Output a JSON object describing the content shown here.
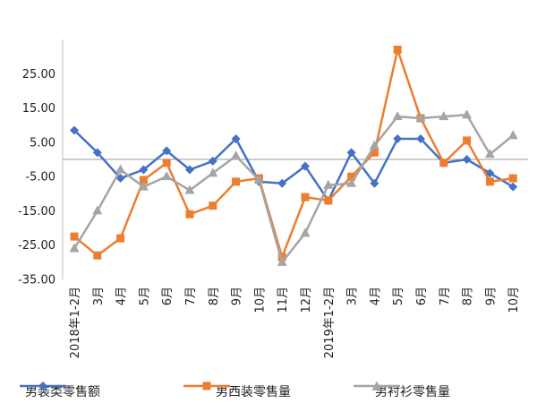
{
  "chart_data": {
    "type": "line",
    "categories": [
      "2018年1-2月",
      "3月",
      "4月",
      "5月",
      "6月",
      "7月",
      "8月",
      "9月",
      "10月",
      "11月",
      "12月",
      "2019年1-2月",
      "3月",
      "4月",
      "5月",
      "6月",
      "7月",
      "8月",
      "9月",
      "10月"
    ],
    "ylim": [
      -35,
      35
    ],
    "yticks": [
      "-35.00",
      "-25.00",
      "-15.00",
      "-5.00",
      "5.00",
      "15.00",
      "25.00"
    ],
    "yticks_values": [
      -35,
      -25,
      -15,
      -5,
      5,
      15,
      25
    ],
    "baseline": 0,
    "legend_position": "bottom",
    "series": [
      {
        "name": "男装类零售额",
        "color": "#4472C4",
        "marker": "diamond",
        "values": [
          8.5,
          2.0,
          -5.5,
          -3.0,
          2.5,
          -3.0,
          -0.5,
          6.0,
          -6.5,
          -7.0,
          -2.0,
          -12.0,
          2.0,
          -7.0,
          6.0,
          6.0,
          -1.0,
          0.0,
          -4.0,
          -8.0
        ]
      },
      {
        "name": "男西装零售量",
        "color": "#ED7D31",
        "marker": "square",
        "values": [
          -22.5,
          -28.0,
          -23.0,
          -6.0,
          -1.0,
          -16.0,
          -13.5,
          -6.5,
          -5.5,
          -28.5,
          -11.0,
          -12.0,
          -5.0,
          2.0,
          32.0,
          12.0,
          -1.0,
          5.5,
          -6.5,
          -5.5
        ]
      },
      {
        "name": "男衬衫零售量",
        "color": "#A5A5A5",
        "marker": "triangle",
        "values": [
          -26.0,
          -15.0,
          -3.0,
          -8.0,
          -5.0,
          -9.0,
          -4.0,
          1.0,
          -6.0,
          -30.0,
          -21.5,
          -7.5,
          -7.0,
          4.0,
          12.5,
          12.0,
          12.5,
          13.0,
          1.5,
          7.0
        ]
      }
    ]
  }
}
